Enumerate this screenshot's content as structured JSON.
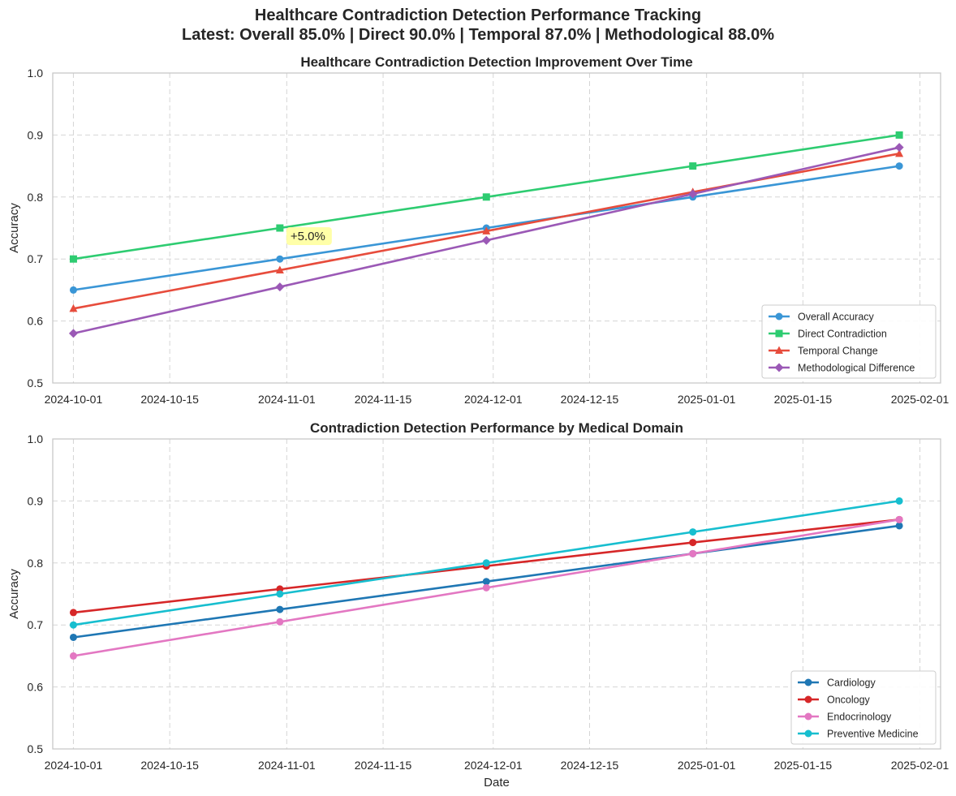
{
  "figure": {
    "suptitle_line1": "Healthcare Contradiction Detection Performance Tracking",
    "suptitle_line2": "Latest: Overall 85.0% | Direct 90.0% | Temporal 87.0% | Methodological 88.0%"
  },
  "chart_data": [
    {
      "type": "line",
      "title": "Healthcare Contradiction Detection Improvement Over Time",
      "xlabel": "",
      "ylabel": "Accuracy",
      "ylim": [
        0.5,
        1.0
      ],
      "yticks": [
        "0.5",
        "0.6",
        "0.7",
        "0.8",
        "0.9",
        "1.0"
      ],
      "xticks": [
        "2024-10-01",
        "2024-10-15",
        "2024-11-01",
        "2024-11-15",
        "2024-12-01",
        "2024-12-15",
        "2025-01-01",
        "2025-01-15",
        "2025-02-01"
      ],
      "x": [
        "2024-10-01",
        "2024-10-31",
        "2024-11-30",
        "2024-12-30",
        "2025-01-29"
      ],
      "grid": true,
      "legend_position": "lower-right",
      "series": [
        {
          "name": "Overall Accuracy",
          "values": [
            0.65,
            0.7,
            0.75,
            0.8,
            0.85
          ],
          "color": "#3a96d6",
          "marker": "circle"
        },
        {
          "name": "Direct Contradiction",
          "values": [
            0.7,
            0.75,
            0.8,
            0.85,
            0.9
          ],
          "color": "#2ecc71",
          "marker": "square"
        },
        {
          "name": "Temporal Change",
          "values": [
            0.62,
            0.682,
            0.745,
            0.808,
            0.87
          ],
          "color": "#e74c3c",
          "marker": "triangle"
        },
        {
          "name": "Methodological Difference",
          "values": [
            0.58,
            0.655,
            0.73,
            0.805,
            0.88
          ],
          "color": "#9b59b6",
          "marker": "diamond"
        }
      ],
      "annotations": [
        {
          "text": "+5.0%",
          "x": "2024-10-31",
          "y": 0.75
        }
      ]
    },
    {
      "type": "line",
      "title": "Contradiction Detection Performance by Medical Domain",
      "xlabel": "Date",
      "ylabel": "Accuracy",
      "ylim": [
        0.5,
        1.0
      ],
      "yticks": [
        "0.5",
        "0.6",
        "0.7",
        "0.8",
        "0.9",
        "1.0"
      ],
      "xticks": [
        "2024-10-01",
        "2024-10-15",
        "2024-11-01",
        "2024-11-15",
        "2024-12-01",
        "2024-12-15",
        "2025-01-01",
        "2025-01-15",
        "2025-02-01"
      ],
      "x": [
        "2024-10-01",
        "2024-10-31",
        "2024-11-30",
        "2024-12-30",
        "2025-01-29"
      ],
      "grid": true,
      "legend_position": "lower-right",
      "series": [
        {
          "name": "Cardiology",
          "values": [
            0.68,
            0.725,
            0.77,
            0.815,
            0.86
          ],
          "color": "#1f77b4",
          "marker": "circle"
        },
        {
          "name": "Oncology",
          "values": [
            0.72,
            0.758,
            0.795,
            0.833,
            0.87
          ],
          "color": "#d62728",
          "marker": "circle"
        },
        {
          "name": "Endocrinology",
          "values": [
            0.65,
            0.705,
            0.76,
            0.815,
            0.87
          ],
          "color": "#e377c2",
          "marker": "circle"
        },
        {
          "name": "Preventive Medicine",
          "values": [
            0.7,
            0.75,
            0.8,
            0.85,
            0.9
          ],
          "color": "#17becf",
          "marker": "circle"
        }
      ],
      "annotations": []
    }
  ]
}
